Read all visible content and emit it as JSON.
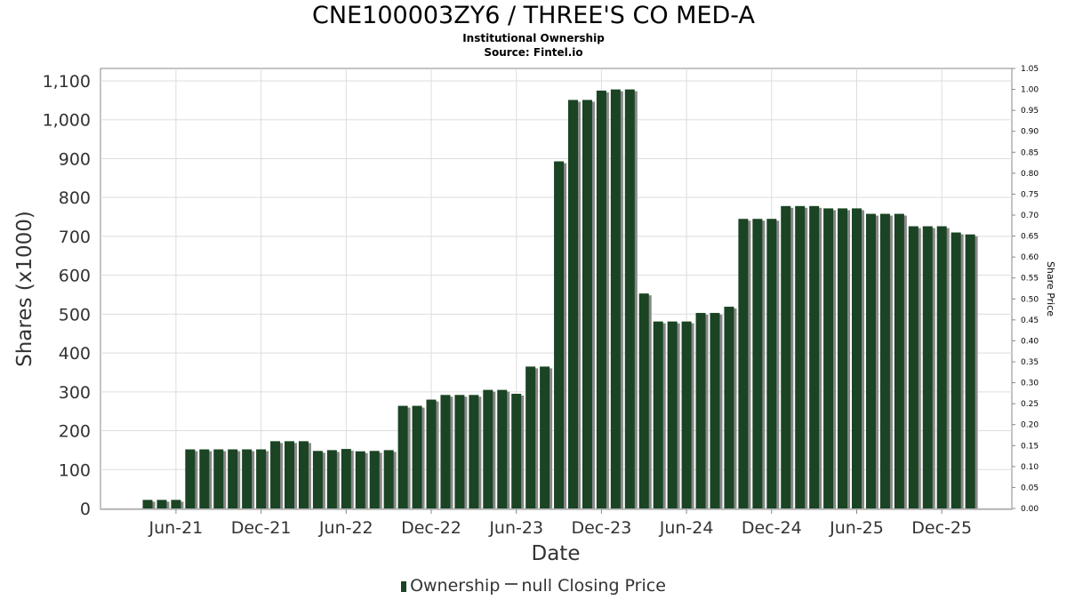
{
  "chart_data": {
    "type": "bar",
    "title": "CNE100003ZY6 / THREE'S CO MED-A",
    "subtitle": [
      "Institutional Ownership",
      "Source: Fintel.io"
    ],
    "xlabel": "Date",
    "ylabel": "Shares (x1000)",
    "y2label": "Share Price",
    "ylim": [
      0,
      1100
    ],
    "y2lim": [
      0,
      1.05
    ],
    "yticks": [
      "0",
      "100",
      "200",
      "300",
      "400",
      "500",
      "600",
      "700",
      "800",
      "900",
      "1,000",
      "1,100"
    ],
    "y2ticks": [
      "0.00",
      "0.05",
      "0.10",
      "0.15",
      "0.20",
      "0.25",
      "0.30",
      "0.35",
      "0.40",
      "0.45",
      "0.50",
      "0.55",
      "0.60",
      "0.65",
      "0.70",
      "0.75",
      "0.80",
      "0.85",
      "0.90",
      "0.95",
      "1.00",
      "1.05"
    ],
    "xticks": [
      "Jun-21",
      "Dec-21",
      "Jun-22",
      "Dec-22",
      "Jun-23",
      "Dec-23",
      "Jun-24",
      "Dec-24",
      "Jun-25",
      "Dec-25"
    ],
    "first_bar_month": "Apr-21",
    "grid": true,
    "legend_position": "bottom",
    "legend": [
      "Ownership",
      "null Closing Price"
    ],
    "series": [
      {
        "name": "Ownership",
        "color": "#1a4423",
        "values": [
          22,
          22,
          22,
          152,
          152,
          152,
          152,
          152,
          152,
          173,
          173,
          173,
          148,
          150,
          153,
          147,
          148,
          150,
          264,
          264,
          280,
          292,
          292,
          292,
          305,
          305,
          295,
          365,
          365,
          893,
          1051,
          1051,
          1075,
          1078,
          1078,
          553,
          481,
          481,
          481,
          503,
          503,
          519,
          745,
          745,
          745,
          778,
          778,
          778,
          772,
          772,
          772,
          758,
          758,
          758,
          726,
          726,
          726,
          710,
          705
        ]
      }
    ]
  }
}
